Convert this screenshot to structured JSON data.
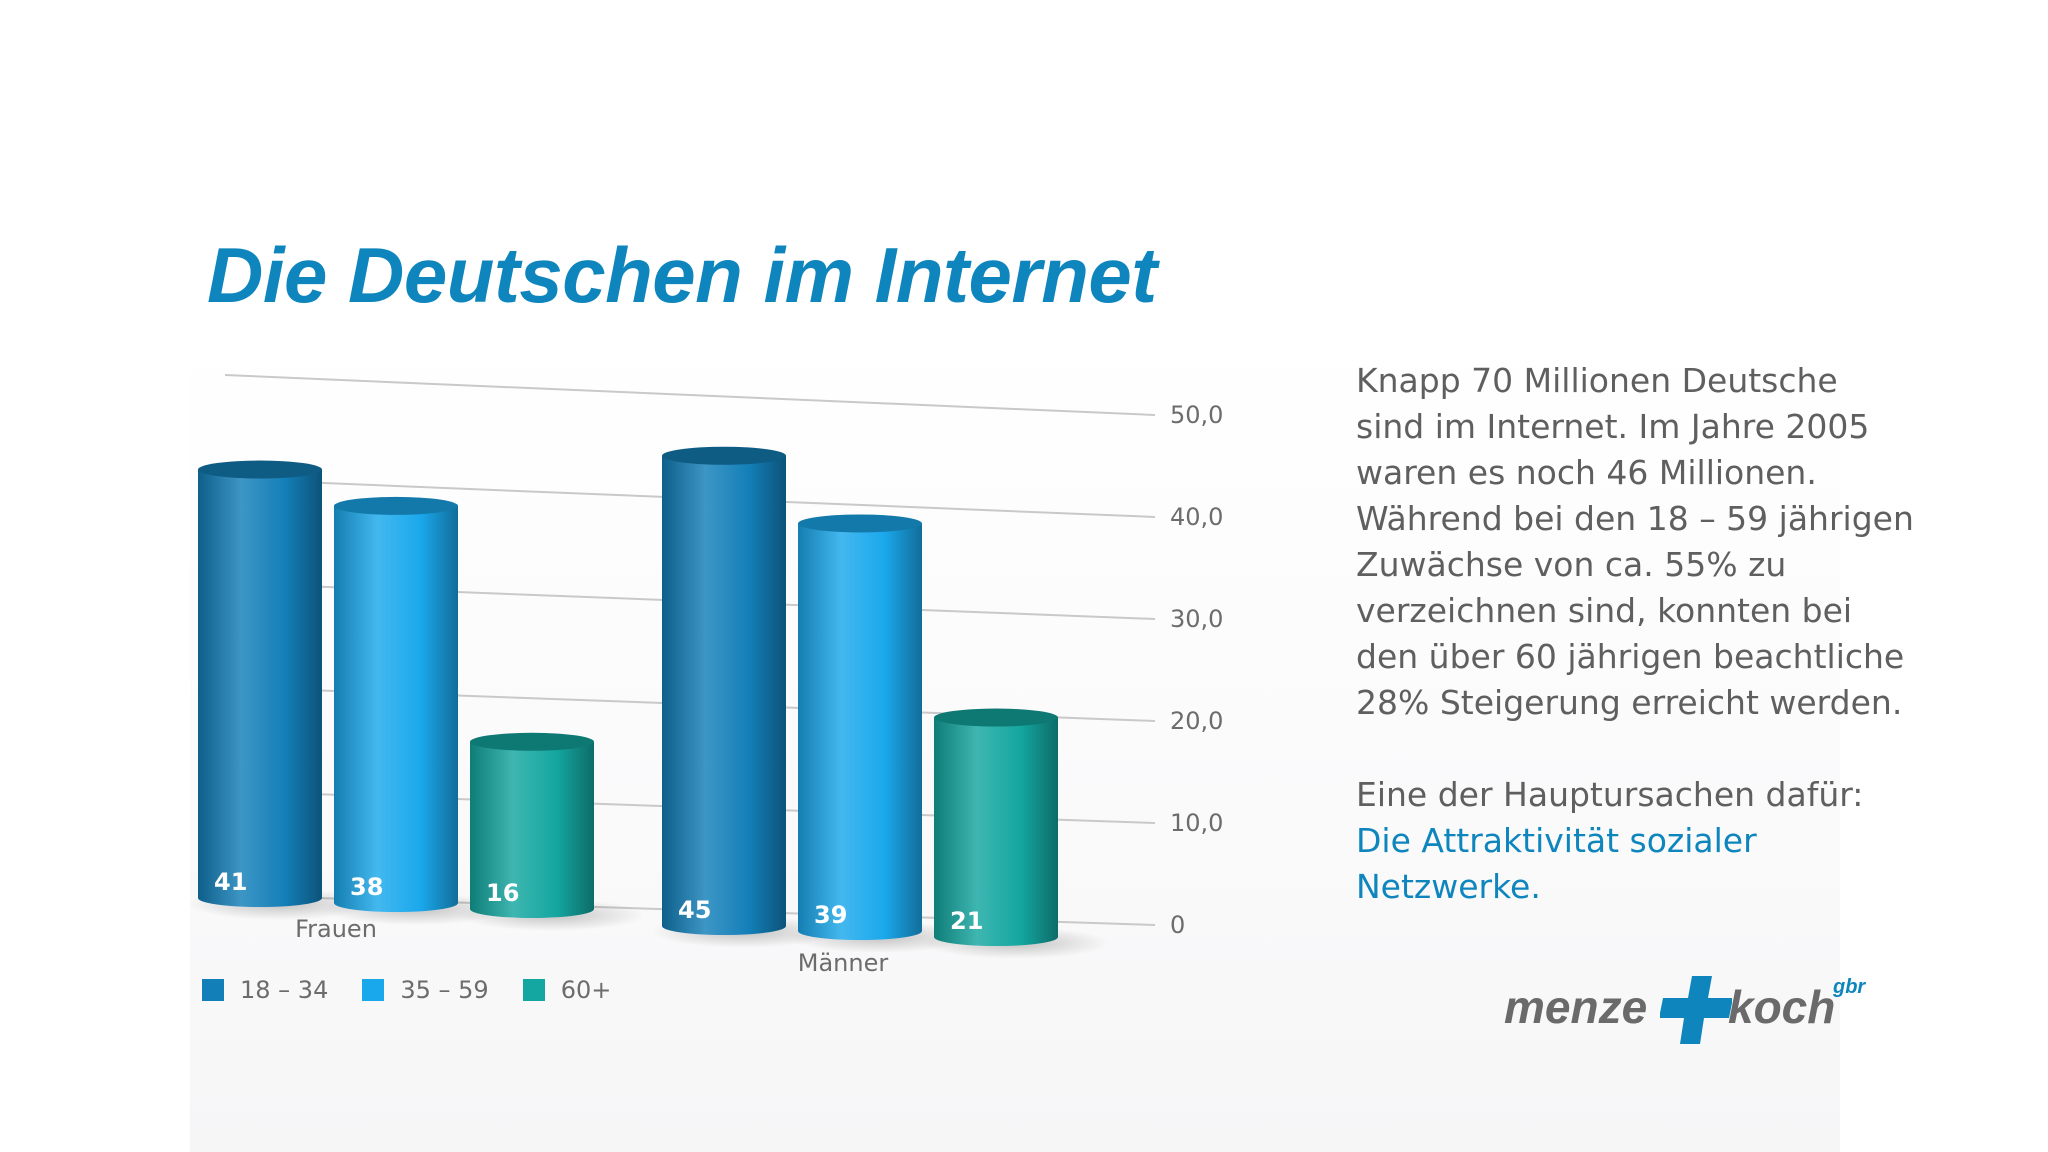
{
  "title": "Die Deutschen im Internet",
  "chart_data": {
    "type": "bar",
    "title": "",
    "xlabel": "",
    "ylabel": "",
    "categories": [
      "Frauen",
      "Männer"
    ],
    "series": [
      {
        "name": "18 – 34",
        "values": [
          41,
          45
        ],
        "color": "#137fb8"
      },
      {
        "name": "35 – 59",
        "values": [
          38,
          39
        ],
        "color": "#1aa8ec"
      },
      {
        "name": "60+",
        "values": [
          16,
          21
        ],
        "color": "#14a6a0"
      }
    ],
    "ylim": [
      0,
      50
    ],
    "yticks": [
      "0",
      "10,0",
      "20,0",
      "30,0",
      "40,0",
      "50,0"
    ],
    "grid": true,
    "legend": "bottom-left",
    "style": "3d-cylinder"
  },
  "text": {
    "paragraph1": "Knapp 70 Millionen Deutsche sind im Internet. Im Jahre 2005 waren es noch 46 Millionen. Während bei den 18 – 59 jährigen Zuwächse von ca. 55% zu verzeichnen sind, konnten bei den über 60 jährigen beachtliche 28% Steigerung erreicht werden.",
    "paragraph2_intro": "Eine der Hauptursachen dafür:",
    "paragraph2_highlight": "Die Attraktivität sozialer Netzwerke."
  },
  "logo": {
    "left_word": "menze",
    "right_word": "koch",
    "suffix": "gbr",
    "plus_color": "#0e86bd"
  }
}
